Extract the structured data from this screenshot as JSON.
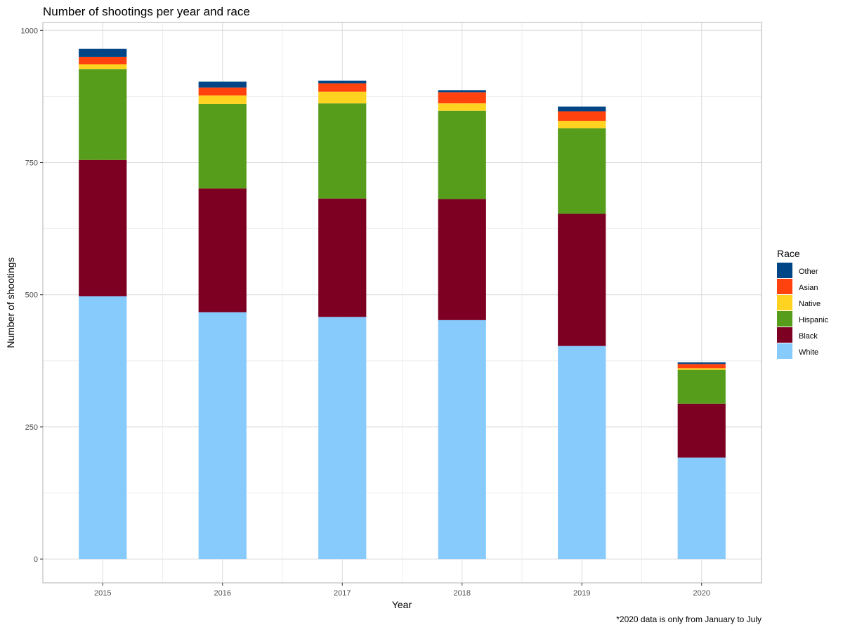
{
  "chart_data": {
    "type": "bar",
    "stacked": true,
    "title": "Number of shootings per year and race",
    "xlabel": "Year",
    "ylabel": "Number of shootings",
    "categories": [
      "2015",
      "2016",
      "2017",
      "2018",
      "2019",
      "2020"
    ],
    "ylim": [
      -45,
      1015
    ],
    "yticks": [
      0,
      250,
      500,
      750,
      1000
    ],
    "grid": true,
    "legend": {
      "title": "Race",
      "position": "right",
      "entries": [
        "Other",
        "Asian",
        "Native",
        "Hispanic",
        "Black",
        "White"
      ]
    },
    "series": [
      {
        "name": "White",
        "color": "#87CAFC",
        "values": [
          497,
          467,
          458,
          452,
          403,
          192
        ]
      },
      {
        "name": "Black",
        "color": "#7D0023",
        "values": [
          258,
          234,
          224,
          229,
          250,
          102
        ]
      },
      {
        "name": "Hispanic",
        "color": "#579D1C",
        "values": [
          172,
          160,
          180,
          167,
          162,
          64
        ]
      },
      {
        "name": "Native",
        "color": "#FFD320",
        "values": [
          9,
          16,
          22,
          14,
          14,
          3
        ]
      },
      {
        "name": "Asian",
        "color": "#FF420E",
        "values": [
          14,
          15,
          16,
          21,
          18,
          8
        ]
      },
      {
        "name": "Other",
        "color": "#004586",
        "values": [
          15,
          11,
          5,
          4,
          9,
          3
        ]
      }
    ],
    "caption": "*2020 data is only from January to July"
  }
}
